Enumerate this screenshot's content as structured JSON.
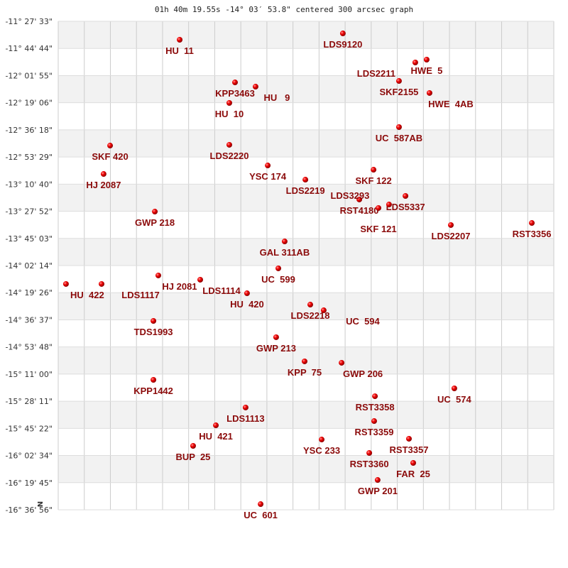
{
  "chart_data": {
    "type": "scatter",
    "title": "01h 40m 19.55s -14° 03′ 53.8\" centered 300 arcsec graph",
    "xlabel": "",
    "ylabel": "",
    "orientation_marker": "N",
    "x_units": "RA offset (arcmin, east of center negative)",
    "xlim": [
      -156.7,
      156.7
    ],
    "ylim": [
      -16.6156,
      -11.4592
    ],
    "y_tick_labels": [
      "-11° 27' 33\"",
      "-11° 44' 44\"",
      "-12° 01' 55\"",
      "-12° 19' 06\"",
      "-12° 36' 18\"",
      "-12° 53' 29\"",
      "-13° 10' 40\"",
      "-13° 27' 52\"",
      "-13° 45' 03\"",
      "-14° 02' 14\"",
      "-14° 19' 26\"",
      "-14° 36' 37\"",
      "-14° 53' 48\"",
      "-15° 11' 00\"",
      "-15° 28' 11\"",
      "-15° 45' 22\"",
      "-16° 02' 34\"",
      "-16° 19' 45\"",
      "-16° 36' 56\""
    ],
    "x_grid_columns": 19,
    "grid": true,
    "band_colors": [
      "#f2f2f2",
      "#ffffff"
    ],
    "point_color": "#dd0000",
    "label_color": "#8b0a0a",
    "points": [
      {
        "label": "HU  11",
        "x": -79.9,
        "dec": -11.654
      },
      {
        "label": "LDS9120",
        "x": 23.3,
        "dec": -11.587
      },
      {
        "label": "HWE  5",
        "x": 76.3,
        "dec": -11.864
      },
      {
        "label": "LDS2211",
        "x": 69.1,
        "dec": -11.894
      },
      {
        "label": "SKF2155",
        "x": 58.8,
        "dec": -12.089
      },
      {
        "label": "HWE  4AB",
        "x": 78.1,
        "dec": -12.216
      },
      {
        "label": "KPP3463",
        "x": -44.9,
        "dec": -12.104
      },
      {
        "label": "HU   9",
        "x": -31.9,
        "dec": -12.149
      },
      {
        "label": "HU  10",
        "x": -48.5,
        "dec": -12.321
      },
      {
        "label": "UC  587AB",
        "x": 58.8,
        "dec": -12.576
      },
      {
        "label": "SKF 420",
        "x": -123.9,
        "dec": -12.771
      },
      {
        "label": "LDS2220",
        "x": -48.5,
        "dec": -12.763
      },
      {
        "label": "YSC 174",
        "x": -24.2,
        "dec": -12.981
      },
      {
        "label": "HJ 2087",
        "x": -128.0,
        "dec": -13.071
      },
      {
        "label": "LDS2219",
        "x": -0.4,
        "dec": -13.131
      },
      {
        "label": "SKF 122",
        "x": 42.7,
        "dec": -13.026
      },
      {
        "label": "RST4180",
        "x": 33.7,
        "dec": -13.34
      },
      {
        "label": "LDS5337",
        "x": 62.9,
        "dec": -13.303
      },
      {
        "label": "LDS3293",
        "x": 52.5,
        "dec": -13.393
      },
      {
        "label": "SKF 121",
        "x": 45.8,
        "dec": -13.43
      },
      {
        "label": "GWP 218",
        "x": -95.6,
        "dec": -13.468
      },
      {
        "label": "LDS2207",
        "x": 91.6,
        "dec": -13.61
      },
      {
        "label": "RST3356",
        "x": 142.8,
        "dec": -13.588
      },
      {
        "label": "GAL 311AB",
        "x": -13.5,
        "dec": -13.783
      },
      {
        "label": "UC  599",
        "x": -17.5,
        "dec": -14.067
      },
      {
        "label": "HU  422",
        "x": -151.8,
        "dec": -14.232
      },
      {
        "label": "LDS1117",
        "x": -129.3,
        "dec": -14.232
      },
      {
        "label": "HJ 2081",
        "x": -93.4,
        "dec": -14.142
      },
      {
        "label": "LDS1114",
        "x": -66.9,
        "dec": -14.187
      },
      {
        "label": "HU  420",
        "x": -37.3,
        "dec": -14.33
      },
      {
        "label": "LDS2218",
        "x": 2.7,
        "dec": -14.45
      },
      {
        "label": "UC  594",
        "x": 11.2,
        "dec": -14.51
      },
      {
        "label": "TDS1993",
        "x": -96.5,
        "dec": -14.622
      },
      {
        "label": "GWP 213",
        "x": -18.9,
        "dec": -14.794
      },
      {
        "label": "KPP  75",
        "x": -0.9,
        "dec": -15.049
      },
      {
        "label": "GWP 206",
        "x": 22.5,
        "dec": -15.064
      },
      {
        "label": "KPP1442",
        "x": -96.5,
        "dec": -15.244
      },
      {
        "label": "UC  574",
        "x": 93.8,
        "dec": -15.334
      },
      {
        "label": "RST3358",
        "x": 43.6,
        "dec": -15.417
      },
      {
        "label": "LDS1113",
        "x": -38.2,
        "dec": -15.536
      },
      {
        "label": "RST3359",
        "x": 43.1,
        "dec": -15.679
      },
      {
        "label": "HU  421",
        "x": -57.0,
        "dec": -15.724
      },
      {
        "label": "BUP  25",
        "x": -71.4,
        "dec": -15.941
      },
      {
        "label": "YSC 233",
        "x": 9.9,
        "dec": -15.874
      },
      {
        "label": "RST3357",
        "x": 65.1,
        "dec": -15.866
      },
      {
        "label": "RST3360",
        "x": 40.0,
        "dec": -16.016
      },
      {
        "label": "FAR  25",
        "x": 67.8,
        "dec": -16.121
      },
      {
        "label": "GWP 201",
        "x": 45.3,
        "dec": -16.301
      },
      {
        "label": "UC  601",
        "x": -28.7,
        "dec": -16.556
      }
    ]
  }
}
